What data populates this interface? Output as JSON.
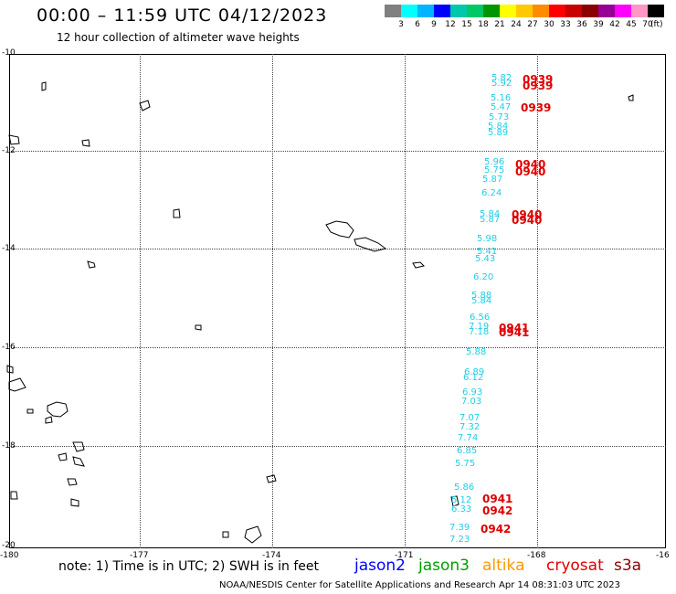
{
  "header": {
    "title": "00:00 – 11:59 UTC 04/12/2023",
    "subtitle": "12 hour collection of altimeter wave heights"
  },
  "colorbar": {
    "colors": [
      "#808080",
      "#00ffff",
      "#00b4ff",
      "#0000ff",
      "#00c8aa",
      "#00c864",
      "#009600",
      "#ffff00",
      "#ffc800",
      "#ff8c00",
      "#ff0000",
      "#c80000",
      "#8b0000",
      "#960096",
      "#ff00ff",
      "#ff96c8",
      "#000000"
    ],
    "labels": [
      "3",
      "6",
      "9",
      "12",
      "15",
      "18",
      "21",
      "24",
      "27",
      "30",
      "33",
      "36",
      "39",
      "42",
      "45",
      "70"
    ],
    "unit": "(ft)"
  },
  "axes": {
    "lat_labels": [
      "-10",
      "-12",
      "-14",
      "-16",
      "-18",
      "-20"
    ],
    "lon_labels": [
      "-180",
      "-177",
      "-174",
      "-171",
      "-168",
      "-16"
    ]
  },
  "swh_values": [
    "5.82",
    "5.92",
    "5.16",
    "5.47",
    "5.73",
    "5.84",
    "5.89",
    "5.96",
    "5.75",
    "5.87",
    "6.24",
    "5.84",
    "5.87",
    "5.98",
    "5.41",
    "5.43",
    "6.20",
    "5.88",
    "5.84",
    "6.56",
    "7.19",
    "7.18",
    "5.88",
    "6.89",
    "6.12",
    "6.93",
    "7.03",
    "7.07",
    "7.32",
    "7.74",
    "6.85",
    "5.75",
    "5.86",
    "5.12",
    "6.33",
    "7.39",
    "7.23"
  ],
  "time_labels": [
    "0939",
    "0939",
    "0939",
    "0940",
    "0940",
    "0940",
    "0940",
    "0941",
    "0941",
    "0941",
    "0942",
    "0942"
  ],
  "footer": {
    "note": "note: 1) Time is in UTC; 2) SWH is in feet",
    "satellites": [
      {
        "name": "jason2",
        "color": "#0000ff"
      },
      {
        "name": "jason3",
        "color": "#00a000"
      },
      {
        "name": "altika",
        "color": "#ff9900"
      },
      {
        "name": "cryosat",
        "color": "#e00000"
      },
      {
        "name": "s3a",
        "color": "#8b0000"
      }
    ],
    "credit": "NOAA/NESDIS Center for Satellite Applications and Research   Apr 14 08:31:03 UTC 2023"
  }
}
